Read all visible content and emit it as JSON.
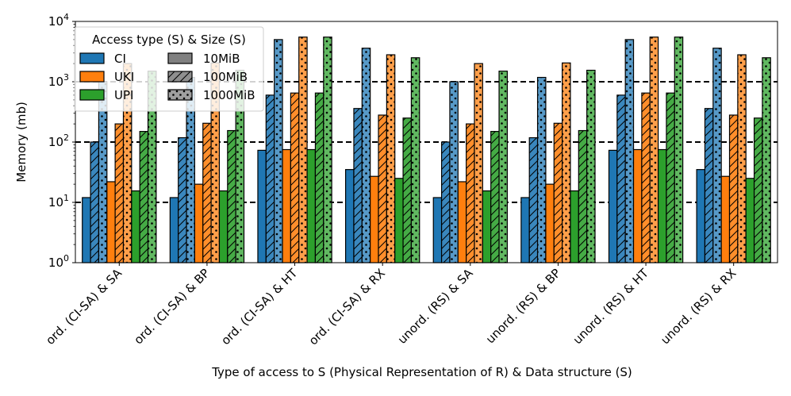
{
  "chart_data": {
    "type": "bar",
    "yscale": "log",
    "ylim": [
      1,
      10000
    ],
    "ylabel": "Memory (mb)",
    "xlabel": "Type of access to S (Physical Representation of R) & Data structure (S)",
    "categories": [
      "ord. (CI-SA) & SA",
      "ord. (CI-SA) & BP",
      "ord. (CI-SA) & HT",
      "ord. (CI-SA) & RX",
      "unord. (RS) & SA",
      "unord. (RS) & BP",
      "unord. (RS) & HT",
      "unord. (RS) & RX"
    ],
    "y_ticks": [
      {
        "value": 1,
        "base": "10",
        "exp": "0"
      },
      {
        "value": 10,
        "base": "10",
        "exp": "1"
      },
      {
        "value": 100,
        "base": "10",
        "exp": "2"
      },
      {
        "value": 1000,
        "base": "10",
        "exp": "3"
      },
      {
        "value": 10000,
        "base": "10",
        "exp": "4"
      }
    ],
    "reference_lines": [
      10,
      100,
      1000
    ],
    "series": [
      {
        "name": "CI",
        "access": "CI",
        "size": "10MiB",
        "color": "#1f77b4",
        "pattern": "none",
        "values": [
          12,
          12,
          73,
          35,
          12,
          12,
          73,
          35
        ]
      },
      {
        "name": "CI",
        "access": "CI",
        "size": "100MiB",
        "color": "#1f77b4",
        "pattern": "hatch",
        "values": [
          100,
          118,
          600,
          360,
          100,
          118,
          600,
          360
        ]
      },
      {
        "name": "CI",
        "access": "CI",
        "size": "1000MiB",
        "color": "#1f77b4",
        "pattern": "dots",
        "values": [
          1000,
          1180,
          5000,
          3600,
          1000,
          1180,
          5000,
          3600
        ]
      },
      {
        "name": "UKI",
        "access": "UKI",
        "size": "10MiB",
        "color": "#ff7f0e",
        "pattern": "none",
        "values": [
          22,
          20,
          75,
          27,
          22,
          20,
          75,
          27
        ]
      },
      {
        "name": "UKI",
        "access": "UKI",
        "size": "100MiB",
        "color": "#ff7f0e",
        "pattern": "hatch",
        "values": [
          200,
          205,
          650,
          280,
          200,
          205,
          650,
          280
        ]
      },
      {
        "name": "UKI",
        "access": "UKI",
        "size": "1000MiB",
        "color": "#ff7f0e",
        "pattern": "dots",
        "values": [
          2000,
          2050,
          5500,
          2800,
          2000,
          2050,
          5500,
          2800
        ]
      },
      {
        "name": "UPI",
        "access": "UPI",
        "size": "10MiB",
        "color": "#2ca02c",
        "pattern": "none",
        "values": [
          15.5,
          15.5,
          75,
          25,
          15.5,
          15.5,
          75,
          25
        ]
      },
      {
        "name": "UPI",
        "access": "UPI",
        "size": "100MiB",
        "color": "#2ca02c",
        "pattern": "hatch",
        "values": [
          150,
          155,
          650,
          250,
          150,
          155,
          650,
          250
        ]
      },
      {
        "name": "UPI",
        "access": "UPI",
        "size": "1000MiB",
        "color": "#2ca02c",
        "pattern": "dots",
        "values": [
          1500,
          1550,
          5500,
          2500,
          1500,
          1550,
          5500,
          2500
        ]
      }
    ],
    "legend": {
      "title": "Access type (S) & Size (S)",
      "placement": "top-left",
      "access_entries": [
        {
          "label": "CI",
          "color": "#1f77b4"
        },
        {
          "label": "UKI",
          "color": "#ff7f0e"
        },
        {
          "label": "UPI",
          "color": "#2ca02c"
        }
      ],
      "size_entries": [
        {
          "label": "10MiB",
          "pattern": "none",
          "color": "#808080"
        },
        {
          "label": "100MiB",
          "pattern": "hatch",
          "color": "#808080"
        },
        {
          "label": "1000MiB",
          "pattern": "dots",
          "color": "#808080"
        }
      ]
    }
  }
}
